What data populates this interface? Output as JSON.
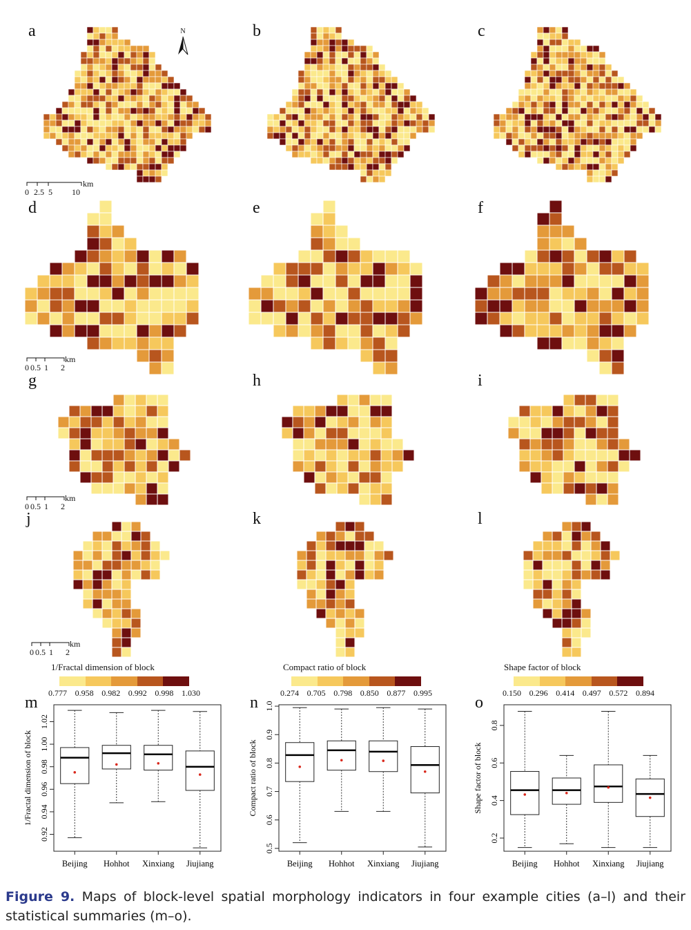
{
  "panel_labels": [
    "a",
    "b",
    "c",
    "d",
    "e",
    "f",
    "g",
    "h",
    "i",
    "j",
    "k",
    "l",
    "m",
    "n",
    "o"
  ],
  "north_arrow": "N",
  "scalebars": {
    "beijing": {
      "ticks": [
        "0",
        "2.5",
        "5",
        "10"
      ],
      "unit": "km"
    },
    "hohhot": {
      "ticks": [
        "0",
        "0.5",
        "1",
        "2"
      ],
      "unit": "km"
    },
    "xinxiang": {
      "ticks": [
        "0",
        "0.5",
        "1",
        "2"
      ],
      "unit": "km"
    },
    "jiujiang": {
      "ticks": [
        "0",
        "0.5",
        "1",
        "2"
      ],
      "unit": "km"
    }
  },
  "colors": [
    "#fbe98c",
    "#f6c85c",
    "#e49a3a",
    "#b8561e",
    "#6e0f0f"
  ],
  "legends": [
    {
      "title": "1/Fractal dimension of block",
      "ticks": [
        "0.777",
        "0.958",
        "0.982",
        "0.992",
        "0.998",
        "1.030"
      ]
    },
    {
      "title": "Compact ratio of block",
      "ticks": [
        "0.274",
        "0.705",
        "0.798",
        "0.850",
        "0.877",
        "0.995"
      ]
    },
    {
      "title": "Shape factor of block",
      "ticks": [
        "0.150",
        "0.296",
        "0.414",
        "0.497",
        "0.572",
        "0.894"
      ]
    }
  ],
  "chart_data": [
    {
      "type": "box",
      "panel": "m",
      "ylabel": "1/Fractal dimension of block",
      "categories": [
        "Beijing",
        "Hohhot",
        "Xinxiang",
        "Jiujiang"
      ],
      "ylim": [
        0.905,
        1.035
      ],
      "yticks": [
        0.92,
        0.94,
        0.96,
        0.98,
        1.0,
        1.02
      ],
      "ytick_labels": [
        "0.92",
        "0.94",
        "0.96",
        "0.98",
        "1.00",
        "1.02"
      ],
      "boxes": [
        {
          "min": 0.917,
          "q1": 0.965,
          "median": 0.988,
          "q3": 0.997,
          "max": 1.03,
          "mean": 0.975
        },
        {
          "min": 0.948,
          "q1": 0.978,
          "median": 0.992,
          "q3": 0.999,
          "max": 1.028,
          "mean": 0.982
        },
        {
          "min": 0.949,
          "q1": 0.977,
          "median": 0.991,
          "q3": 0.999,
          "max": 1.03,
          "mean": 0.983
        },
        {
          "min": 0.908,
          "q1": 0.959,
          "median": 0.98,
          "q3": 0.994,
          "max": 1.029,
          "mean": 0.973
        }
      ]
    },
    {
      "type": "box",
      "panel": "n",
      "ylabel": "Compact ratio of block",
      "categories": [
        "Beijing",
        "Hohhot",
        "Xinxiang",
        "Jiujiang"
      ],
      "ylim": [
        0.49,
        1.005
      ],
      "yticks": [
        0.5,
        0.6,
        0.7,
        0.8,
        0.9,
        1.0
      ],
      "ytick_labels": [
        "0.5",
        "0.6",
        "0.7",
        "0.8",
        "0.9",
        "1.0"
      ],
      "boxes": [
        {
          "min": 0.52,
          "q1": 0.735,
          "median": 0.828,
          "q3": 0.872,
          "max": 0.995,
          "mean": 0.787
        },
        {
          "min": 0.63,
          "q1": 0.775,
          "median": 0.845,
          "q3": 0.878,
          "max": 0.99,
          "mean": 0.81
        },
        {
          "min": 0.63,
          "q1": 0.77,
          "median": 0.84,
          "q3": 0.878,
          "max": 0.995,
          "mean": 0.808
        },
        {
          "min": 0.505,
          "q1": 0.695,
          "median": 0.793,
          "q3": 0.858,
          "max": 0.99,
          "mean": 0.77
        }
      ]
    },
    {
      "type": "box",
      "panel": "o",
      "ylabel": "Shape factor of block",
      "categories": [
        "Beijing",
        "Hohhot",
        "Xinxiang",
        "Jiujiang"
      ],
      "ylim": [
        0.13,
        0.91
      ],
      "yticks": [
        0.2,
        0.4,
        0.6,
        0.8
      ],
      "ytick_labels": [
        "0.2",
        "0.4",
        "0.6",
        "0.8"
      ],
      "boxes": [
        {
          "min": 0.15,
          "q1": 0.325,
          "median": 0.455,
          "q3": 0.555,
          "max": 0.875,
          "mean": 0.432
        },
        {
          "min": 0.17,
          "q1": 0.38,
          "median": 0.455,
          "q3": 0.52,
          "max": 0.64,
          "mean": 0.44
        },
        {
          "min": 0.15,
          "q1": 0.39,
          "median": 0.475,
          "q3": 0.59,
          "max": 0.875,
          "mean": 0.47
        },
        {
          "min": 0.15,
          "q1": 0.315,
          "median": 0.435,
          "q3": 0.515,
          "max": 0.64,
          "mean": 0.415
        }
      ]
    }
  ],
  "caption": {
    "label": "Figure 9.",
    "text": "Maps of block-level spatial morphology indicators in four example cities (a–l) and their statistical summaries (m–o)."
  }
}
